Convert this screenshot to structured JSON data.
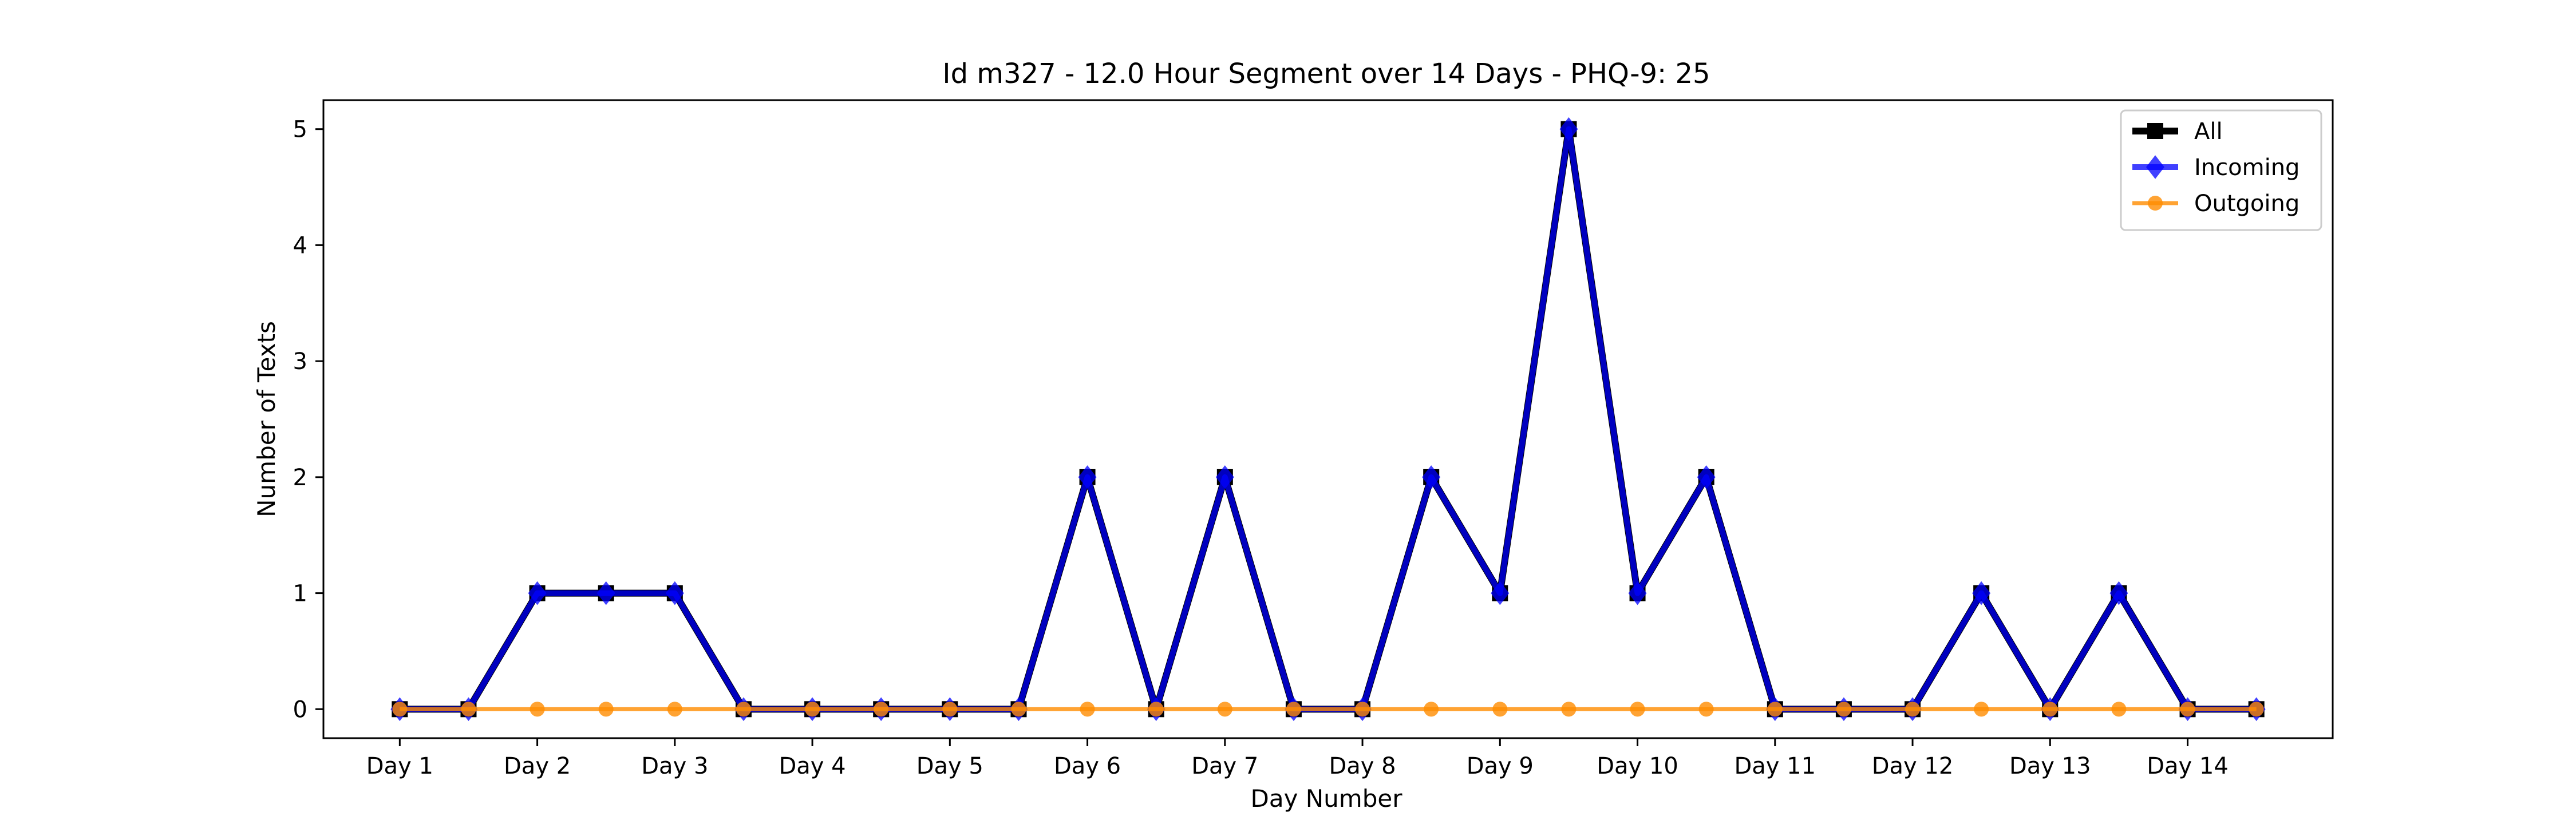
{
  "chart_data": {
    "type": "line",
    "title": "Id m327 - 12.0 Hour Segment over 14 Days - PHQ-9: 25",
    "xlabel": "Day Number",
    "ylabel": "Number of Texts",
    "x": [
      1,
      1.5,
      2,
      2.5,
      3,
      3.5,
      4,
      4.5,
      5,
      5.5,
      6,
      6.5,
      7,
      7.5,
      8,
      8.5,
      9,
      9.5,
      10,
      10.5,
      11,
      11.5,
      12,
      12.5,
      13,
      13.5,
      14,
      14.5
    ],
    "xticks": [
      1,
      2,
      3,
      4,
      5,
      6,
      7,
      8,
      9,
      10,
      11,
      12,
      13,
      14
    ],
    "xtick_labels": [
      "Day 1",
      "Day 2",
      "Day 3",
      "Day 4",
      "Day 5",
      "Day 6",
      "Day 7",
      "Day 8",
      "Day 9",
      "Day 10",
      "Day 11",
      "Day 12",
      "Day 13",
      "Day 14"
    ],
    "yticks": [
      0,
      1,
      2,
      3,
      4,
      5
    ],
    "xlim": [
      0.445,
      15.055
    ],
    "ylim": [
      -0.25,
      5.25
    ],
    "grid": false,
    "legend_position": "top-right",
    "series": [
      {
        "name": "All",
        "color": "#000000",
        "marker": "square",
        "values": [
          0,
          0,
          1,
          1,
          1,
          0,
          0,
          0,
          0,
          0,
          2,
          0,
          2,
          0,
          0,
          2,
          1,
          5,
          1,
          2,
          0,
          0,
          0,
          1,
          0,
          1,
          0,
          0
        ]
      },
      {
        "name": "Incoming",
        "color": "#0000ff",
        "marker": "diamond",
        "values": [
          0,
          0,
          1,
          1,
          1,
          0,
          0,
          0,
          0,
          0,
          2,
          0,
          2,
          0,
          0,
          2,
          1,
          5,
          1,
          2,
          0,
          0,
          0,
          1,
          0,
          1,
          0,
          0
        ]
      },
      {
        "name": "Outgoing",
        "color": "#ff8c00",
        "marker": "circle",
        "values": [
          0,
          0,
          0,
          0,
          0,
          0,
          0,
          0,
          0,
          0,
          0,
          0,
          0,
          0,
          0,
          0,
          0,
          0,
          0,
          0,
          0,
          0,
          0,
          0,
          0,
          0,
          0,
          0
        ]
      }
    ]
  }
}
